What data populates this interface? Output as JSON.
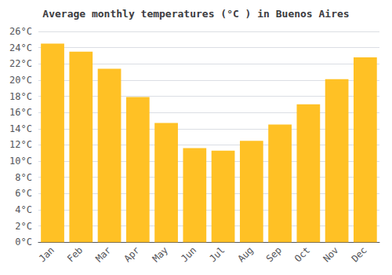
{
  "chart_data": {
    "type": "bar",
    "title": "Average monthly temperatures (°C ) in Buenos Aires",
    "categories": [
      "Jan",
      "Feb",
      "Mar",
      "Apr",
      "May",
      "Jun",
      "Jul",
      "Aug",
      "Sep",
      "Oct",
      "Nov",
      "Dec"
    ],
    "values": [
      24.5,
      23.5,
      21.4,
      17.9,
      14.7,
      11.6,
      11.3,
      12.5,
      14.5,
      17.0,
      20.1,
      22.8
    ],
    "color": "#FFC125",
    "ylim": [
      0,
      26
    ],
    "yticks": [
      {
        "value": 0,
        "label": "0°C"
      },
      {
        "value": 2,
        "label": "2°C"
      },
      {
        "value": 4,
        "label": "4°C"
      },
      {
        "value": 6,
        "label": "6°C"
      },
      {
        "value": 8,
        "label": "8°C"
      },
      {
        "value": 10,
        "label": "10°C"
      },
      {
        "value": 12,
        "label": "12°C"
      },
      {
        "value": 14,
        "label": "14°C"
      },
      {
        "value": 16,
        "label": "16°C"
      },
      {
        "value": 18,
        "label": "18°C"
      },
      {
        "value": 20,
        "label": "20°C"
      },
      {
        "value": 22,
        "label": "22°C"
      },
      {
        "value": 24,
        "label": "24°C"
      },
      {
        "value": 26,
        "label": "26°C"
      }
    ],
    "grid": true
  }
}
